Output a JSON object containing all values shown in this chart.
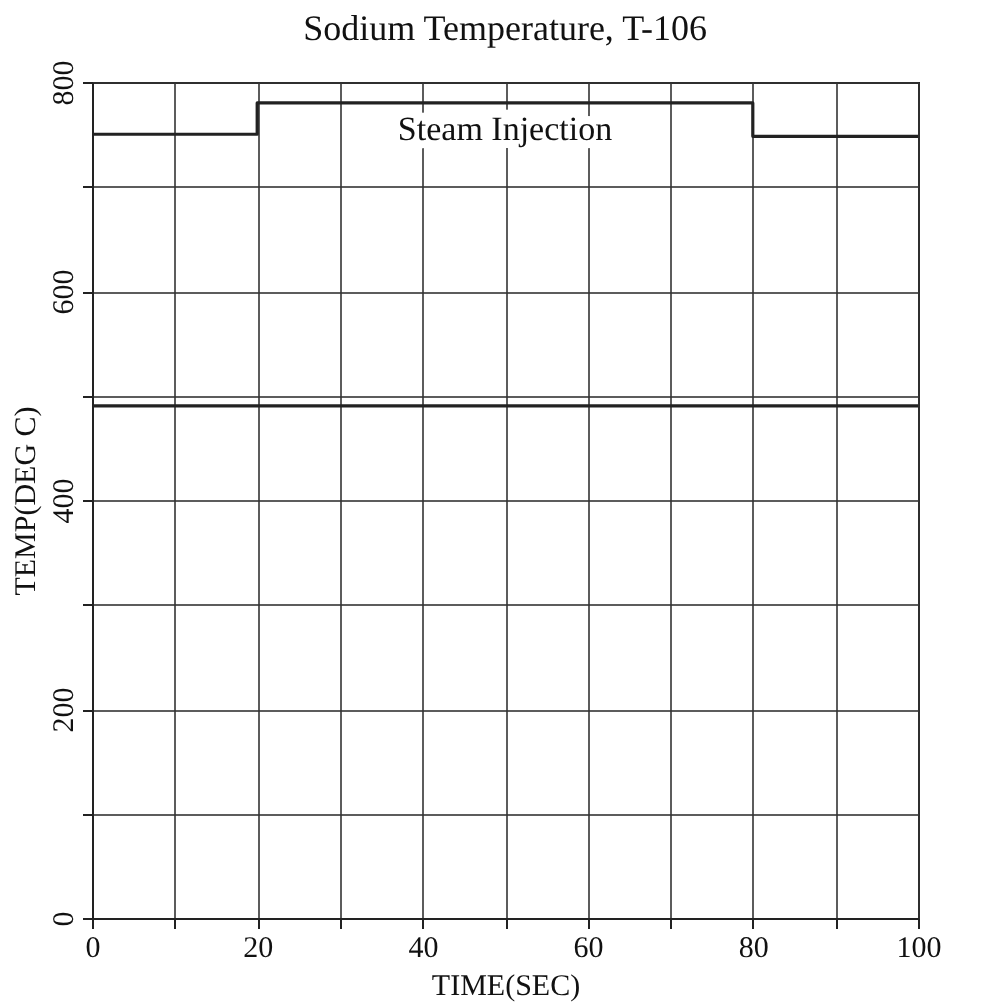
{
  "chart_data": {
    "type": "step",
    "title": "Sodium Temperature, T-106",
    "xlabel": "TIME(SEC)",
    "ylabel": "TEMP(DEG C)",
    "x": [
      0,
      20,
      80,
      100
    ],
    "series": [
      {
        "color": "#222222",
        "values": [
          750,
          780,
          748,
          748
        ]
      },
      {
        "color": "#222222",
        "values": [
          490,
          490,
          490,
          490
        ]
      }
    ],
    "annotations": [
      "Steam Injection"
    ],
    "xlim": [
      0,
      100
    ],
    "ylim": [
      0,
      800
    ],
    "xticks": [
      0,
      {
        "value": 10,
        "label": null
      },
      20,
      {
        "value": 30,
        "label": null
      },
      40,
      {
        "value": 50,
        "label": null
      },
      60,
      {
        "value": 70,
        "label": null
      },
      80,
      {
        "value": 90,
        "label": null
      },
      100
    ],
    "yticks": [
      0,
      {
        "value": 100,
        "label": null
      },
      200,
      {
        "value": 300,
        "label": null
      },
      400,
      {
        "value": 500,
        "label": null
      },
      600,
      {
        "value": 700,
        "label": null
      },
      800
    ],
    "grid": true
  }
}
